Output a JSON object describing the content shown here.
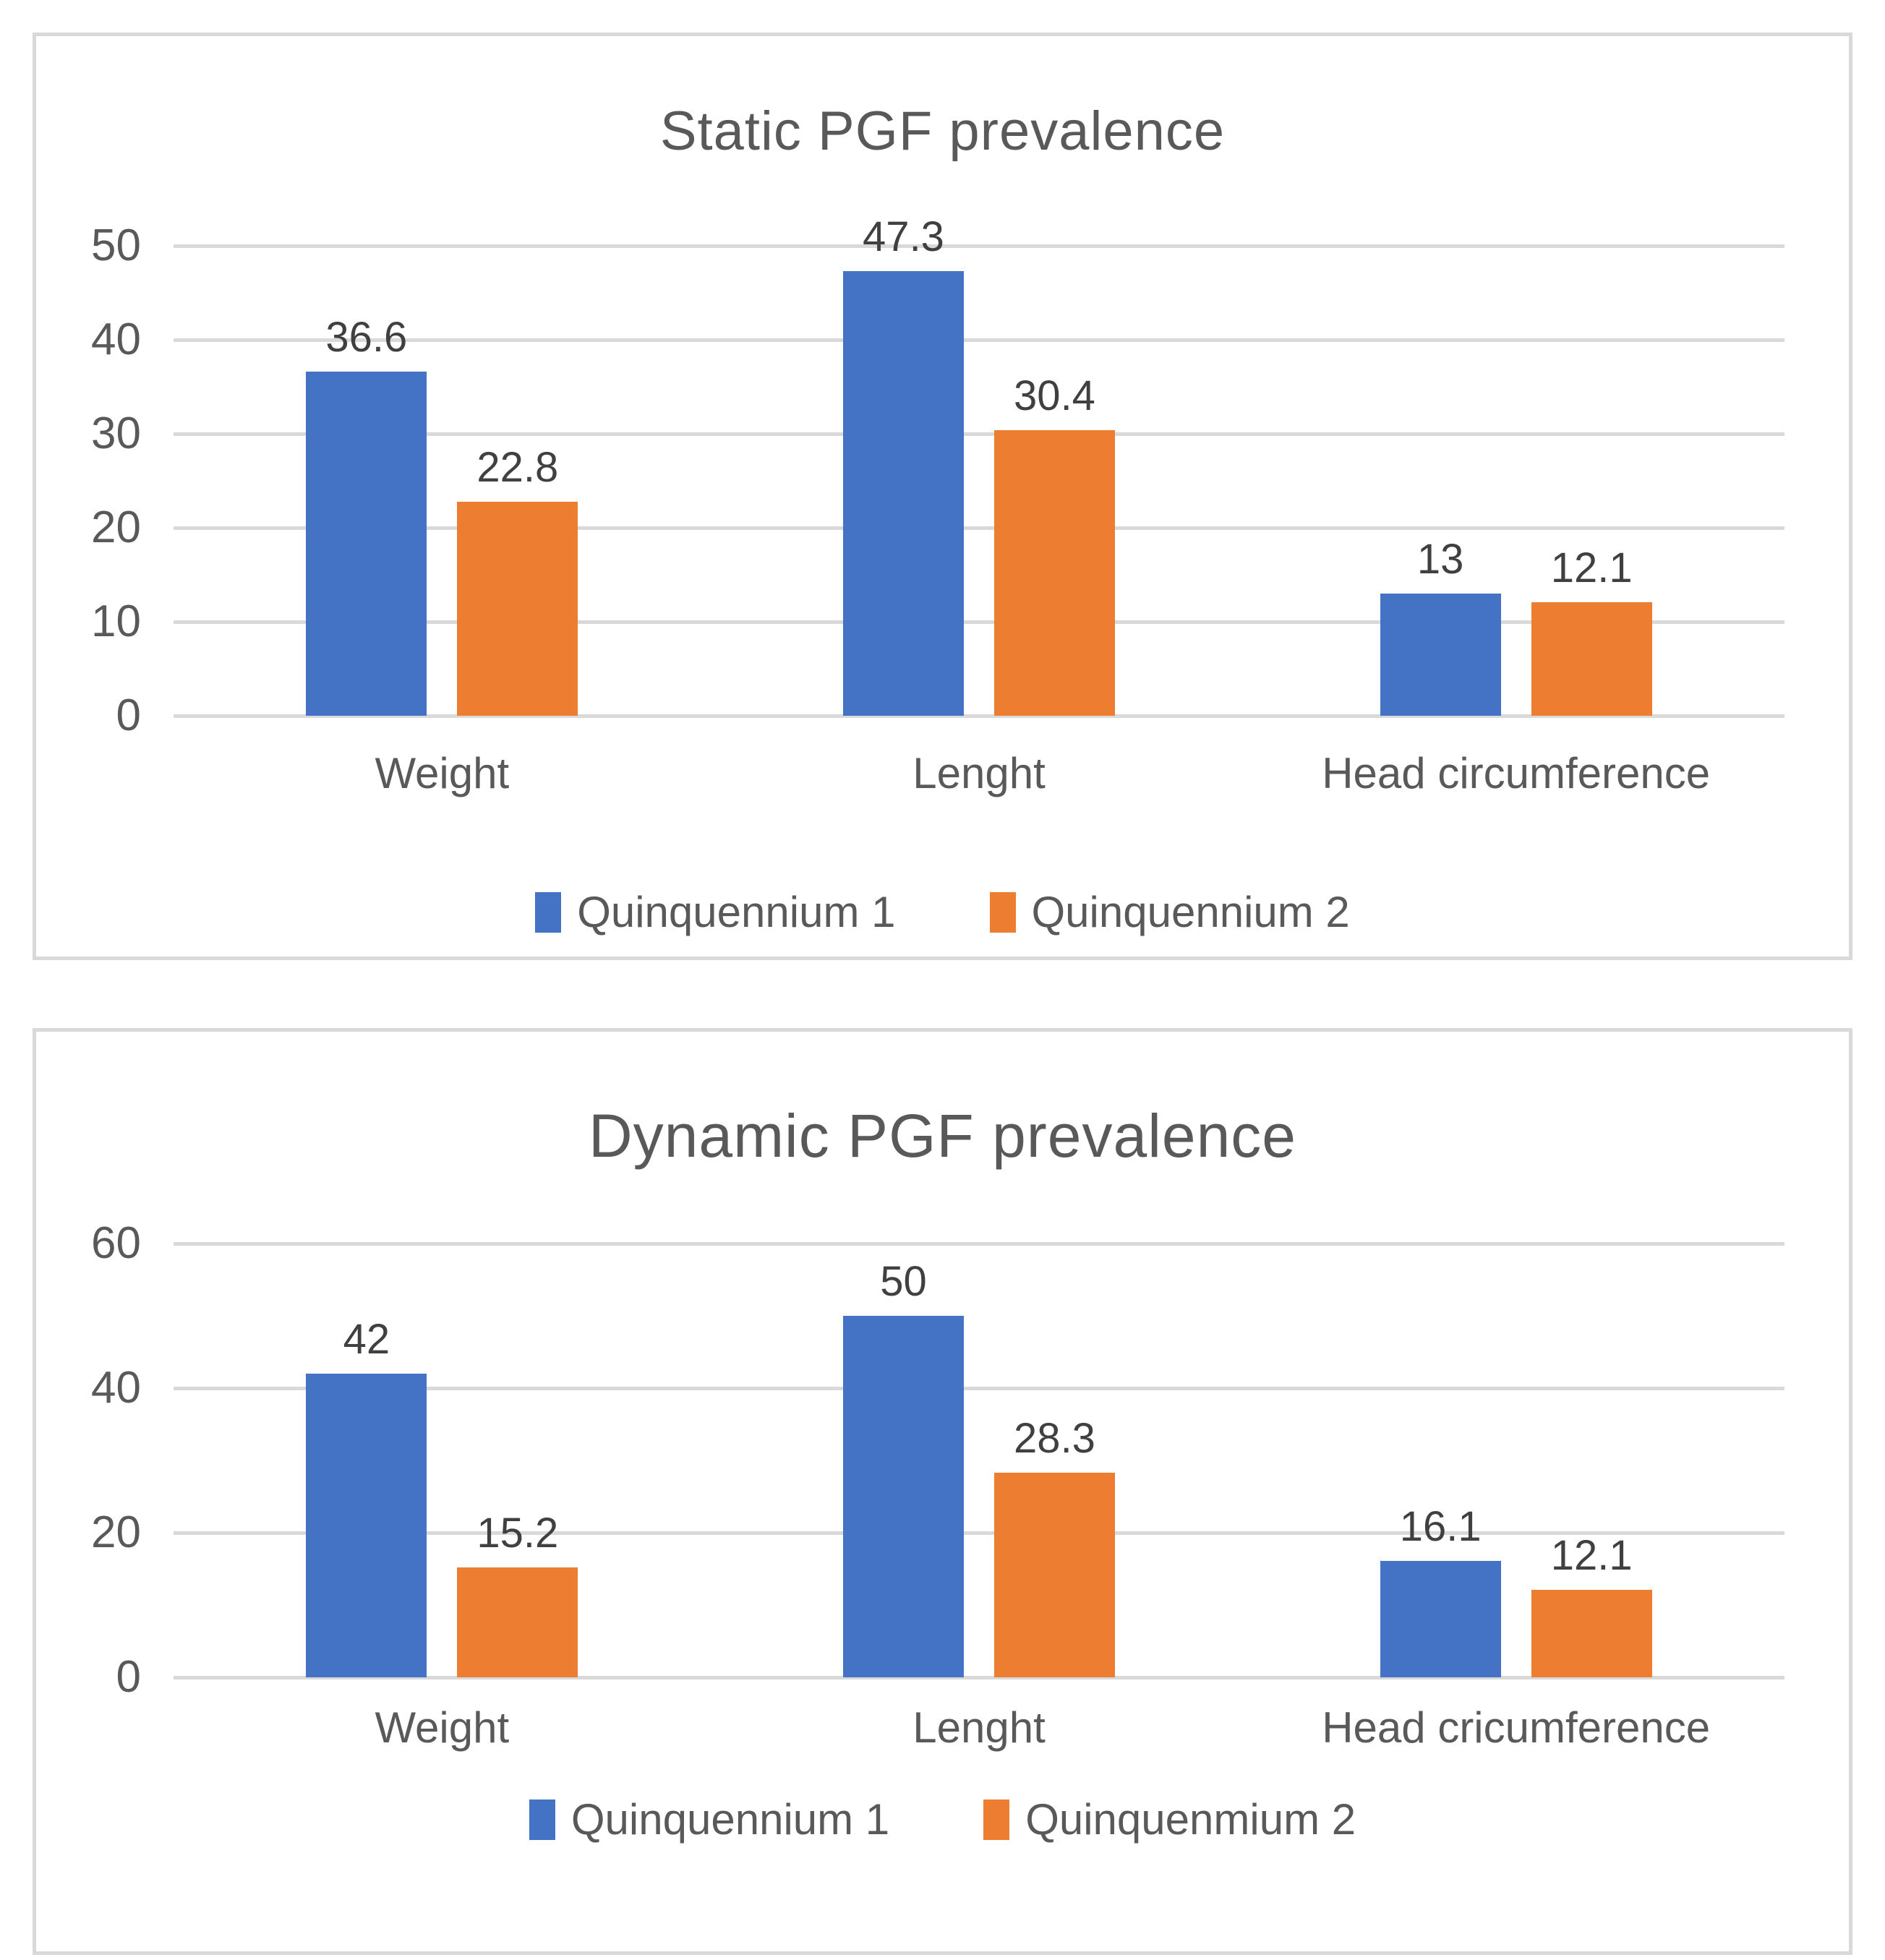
{
  "colors": {
    "series1": "#4472C4",
    "series2": "#ED7D31",
    "gridline": "#D9D9D9",
    "panel_border": "#D9D9D9",
    "title_text": "#595959",
    "axis_text": "#595959",
    "value_text": "#404040",
    "background": "#FFFFFF"
  },
  "chart_data": [
    {
      "type": "bar",
      "title": "Static PGF prevalence",
      "categories": [
        "Weight",
        "Lenght",
        "Head circumference"
      ],
      "series": [
        {
          "name": "Quinquennium 1",
          "color": "#4472C4",
          "values": [
            36.6,
            47.3,
            13
          ]
        },
        {
          "name": "Quinquennium 2",
          "color": "#ED7D31",
          "values": [
            22.8,
            30.4,
            12.1
          ]
        }
      ],
      "legend": [
        "Quinquennium 1",
        "Quinquennium 2"
      ],
      "xlabel": "",
      "ylabel": "",
      "ylim": [
        0,
        50
      ],
      "yticks": [
        0,
        10,
        20,
        30,
        40,
        50
      ],
      "grid": true,
      "legend_position": "bottom",
      "data_labels": true
    },
    {
      "type": "bar",
      "title": "Dynamic PGF prevalence",
      "categories": [
        "Weight",
        "Lenght",
        "Head cricumference"
      ],
      "series": [
        {
          "name": "Quinquennium 1",
          "color": "#4472C4",
          "values": [
            42,
            50,
            16.1
          ]
        },
        {
          "name": "Quinquenmium 2",
          "color": "#ED7D31",
          "values": [
            15.2,
            28.3,
            12.1
          ]
        }
      ],
      "legend": [
        "Quinquennium 1",
        "Quinquenmium 2"
      ],
      "xlabel": "",
      "ylabel": "",
      "ylim": [
        0,
        60
      ],
      "yticks": [
        0,
        20,
        40,
        60
      ],
      "grid": true,
      "legend_position": "bottom",
      "data_labels": true
    }
  ]
}
